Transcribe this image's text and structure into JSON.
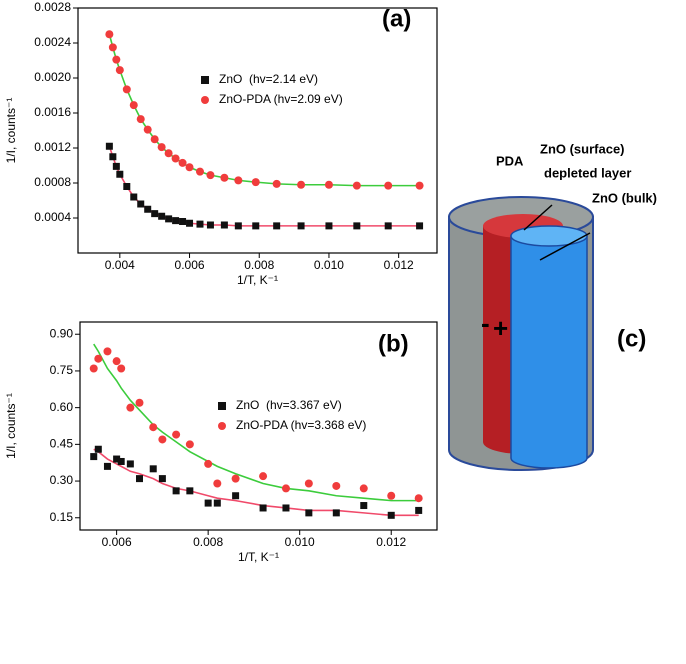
{
  "chart_data": [
    {
      "type": "scatter",
      "annotation": "(a)",
      "x_label": "1/T, K⁻¹",
      "y_label": "1/I, counts⁻¹",
      "x": [
        0.0037,
        0.0038,
        0.0039,
        0.004,
        0.0042,
        0.0044,
        0.0046,
        0.0048,
        0.005,
        0.0052,
        0.0054,
        0.0056,
        0.0058,
        0.006,
        0.0063,
        0.0066,
        0.007,
        0.0074,
        0.0079,
        0.0085,
        0.0092,
        0.01,
        0.0108,
        0.0117,
        0.0126
      ],
      "series": [
        {
          "name": "ZnO  (hv=2.14 eV)",
          "color": "#111111",
          "marker": "square",
          "values": [
            0.00122,
            0.0011,
            0.00099,
            0.0009,
            0.00076,
            0.00064,
            0.00056,
            0.0005,
            0.00045,
            0.00042,
            0.00039,
            0.00037,
            0.00036,
            0.00034,
            0.00033,
            0.00032,
            0.00032,
            0.00031,
            0.00031,
            0.00031,
            0.00031,
            0.00031,
            0.00031,
            0.00031,
            0.00031
          ]
        },
        {
          "name": "ZnO-PDA (hv=2.09 eV)",
          "color": "#f03c3c",
          "marker": "circle",
          "values": [
            0.0025,
            0.00235,
            0.00221,
            0.00209,
            0.00187,
            0.00169,
            0.00153,
            0.00141,
            0.0013,
            0.00121,
            0.00114,
            0.00108,
            0.00103,
            0.00098,
            0.00093,
            0.00089,
            0.00086,
            0.00083,
            0.00081,
            0.00079,
            0.00078,
            0.00078,
            0.00077,
            0.00077,
            0.00077
          ]
        },
        {
          "color": "#f04a6a",
          "mode": "line",
          "values": [
            0.00122,
            0.0011,
            0.00099,
            0.0009,
            0.00076,
            0.00064,
            0.00056,
            0.0005,
            0.00045,
            0.00042,
            0.00039,
            0.00037,
            0.00036,
            0.00034,
            0.00033,
            0.00032,
            0.00032,
            0.00031,
            0.00031,
            0.00031,
            0.00031,
            0.00031,
            0.00031,
            0.00031,
            0.00031
          ]
        },
        {
          "color": "#3ccc3c",
          "mode": "line",
          "values": [
            0.0025,
            0.00235,
            0.00221,
            0.00209,
            0.00187,
            0.00169,
            0.00153,
            0.00141,
            0.0013,
            0.00121,
            0.00114,
            0.00108,
            0.00103,
            0.00098,
            0.00093,
            0.00089,
            0.00086,
            0.00083,
            0.00081,
            0.00079,
            0.00078,
            0.00078,
            0.00077,
            0.00077,
            0.00077
          ]
        }
      ],
      "xlim": [
        0.0028,
        0.0131
      ],
      "xticks": [
        0.004,
        0.006,
        0.008,
        {
          "value": 0.01,
          "label": "0.010"
        },
        0.012
      ],
      "ylim": [
        0,
        0.0028
      ],
      "yticks": [
        0.0004,
        0.0008,
        0.0012,
        0.0016,
        {
          "value": 0.002,
          "label": "0.0020"
        },
        0.0024,
        0.0028
      ]
    },
    {
      "type": "scatter",
      "annotation": "(b)",
      "x_label": "1/T, K⁻¹",
      "y_label": "1/I, counts⁻¹",
      "x": [
        0.0055,
        0.0056,
        0.0058,
        0.006,
        0.0061,
        0.0063,
        0.0065,
        0.0068,
        0.007,
        0.0073,
        0.0076,
        0.008,
        0.0082,
        0.0086,
        0.0092,
        0.0097,
        0.0102,
        0.0108,
        0.0114,
        0.012,
        0.0126
      ],
      "series": [
        {
          "name": "ZnO  (hv=3.367 eV)",
          "color": "#111111",
          "marker": "square",
          "values": [
            0.4,
            0.43,
            0.36,
            0.39,
            0.38,
            0.37,
            0.31,
            0.35,
            0.31,
            0.26,
            0.26,
            0.21,
            0.21,
            0.24,
            0.19,
            0.19,
            0.17,
            0.17,
            0.2,
            0.16,
            0.18
          ]
        },
        {
          "name": "ZnO-PDA (hv=3.368 eV)",
          "color": "#f03c3c",
          "marker": "circle",
          "values": [
            0.76,
            0.8,
            0.83,
            0.79,
            0.76,
            0.6,
            0.62,
            0.52,
            0.47,
            0.49,
            0.45,
            0.37,
            0.29,
            0.31,
            0.32,
            0.27,
            0.29,
            0.28,
            0.27,
            0.24,
            0.23
          ]
        },
        {
          "color": "#3ccc3c",
          "mode": "line",
          "values": [
            0.86,
            0.83,
            0.76,
            0.71,
            0.68,
            0.63,
            0.59,
            0.53,
            0.5,
            0.46,
            0.42,
            0.38,
            0.36,
            0.33,
            0.29,
            0.27,
            0.26,
            0.24,
            0.23,
            0.22,
            0.22
          ]
        },
        {
          "color": "#f04a6a",
          "mode": "line",
          "values": [
            0.43,
            0.42,
            0.39,
            0.37,
            0.36,
            0.34,
            0.33,
            0.31,
            0.29,
            0.27,
            0.26,
            0.24,
            0.23,
            0.22,
            0.2,
            0.19,
            0.18,
            0.18,
            0.17,
            0.16,
            0.16
          ]
        }
      ],
      "xlim": [
        0.0052,
        0.013
      ],
      "xticks": [
        0.006,
        0.008,
        {
          "value": 0.01,
          "label": "0.010"
        },
        0.012
      ],
      "ylim": [
        0.1,
        0.95
      ],
      "yticks": [
        0.15,
        {
          "value": 0.3,
          "label": "0.30"
        },
        0.45,
        {
          "value": 0.6,
          "label": "0.60"
        },
        0.75,
        {
          "value": 0.9,
          "label": "0.90"
        }
      ]
    }
  ],
  "diagram": {
    "labels": [
      "PDA",
      "ZnO (surface)",
      "depleted layer",
      "ZnO (bulk)"
    ],
    "minus": "-",
    "plus": "+",
    "panel": "(c)"
  }
}
